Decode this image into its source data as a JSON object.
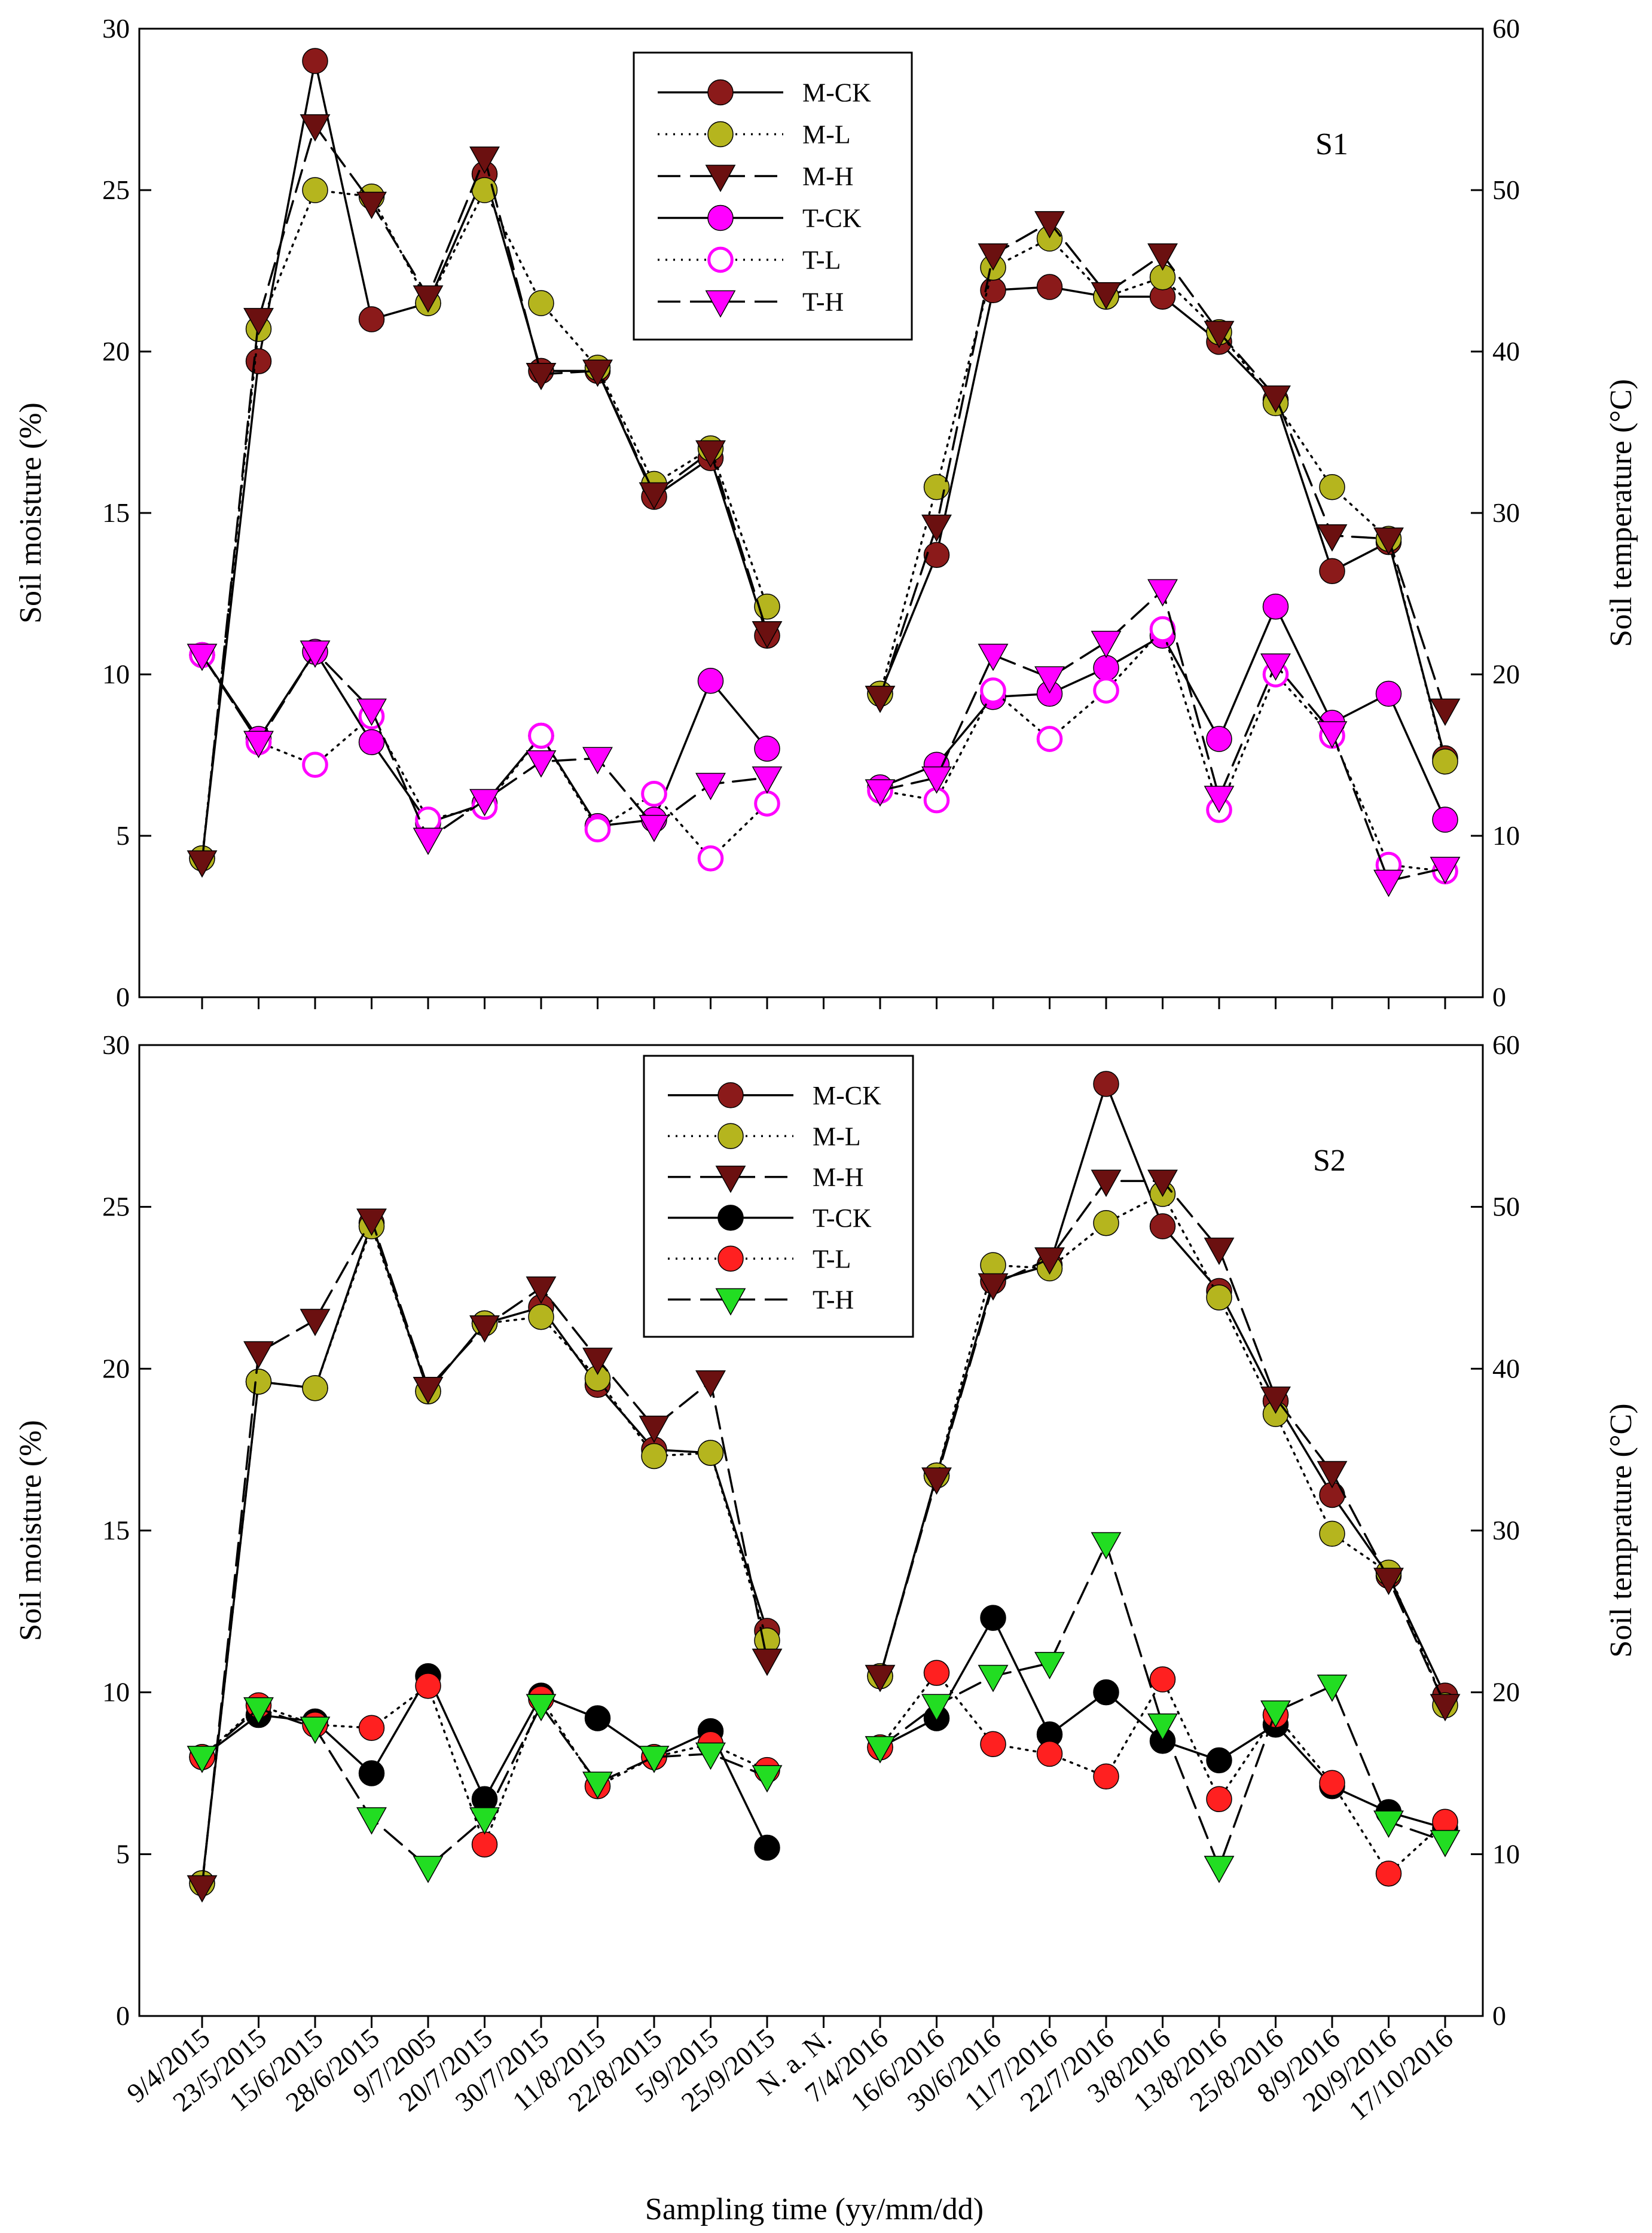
{
  "chart_data": {
    "type": "line",
    "x_categories": [
      "9/4/2015",
      "23/5/2015",
      "15/6/2015",
      "28/6/2015",
      "9/7/2005",
      "20/7/2015",
      "30/7/2015",
      "11/8/2015",
      "22/8/2015",
      "5/9/2015",
      "25/9/2015",
      "N. a. N.",
      "7/4/2016",
      "16/6/2016",
      "30/6/2016",
      "11/7/2016",
      "22/7/2016",
      "3/8/2016",
      "13/8/2016",
      "25/8/2016",
      "8/9/2016",
      "20/9/2016",
      "17/10/2016"
    ],
    "xlabel": "Sampling  time (yy/mm/dd)",
    "panels": [
      {
        "id": "S1",
        "label": "S1",
        "ylabel_left": "Soil moisture (%)",
        "ylabel_right": "Soil temperature (°C)",
        "ylim_left": [
          0,
          30
        ],
        "ylim_right": [
          0,
          60
        ],
        "yticks_left": [
          "0",
          "5",
          "10",
          "15",
          "20",
          "25",
          "30"
        ],
        "yticks_right": [
          "0",
          "10",
          "20",
          "30",
          "40",
          "50",
          "60"
        ],
        "series": [
          {
            "name": "M-CK",
            "style": "solid",
            "marker": "circle",
            "color": "#8b1a1a",
            "values": [
              4.3,
              19.7,
              29.0,
              21.0,
              21.5,
              25.5,
              19.4,
              19.4,
              15.5,
              16.7,
              11.2,
              null,
              9.4,
              13.7,
              21.9,
              22.0,
              21.7,
              21.7,
              20.3,
              18.5,
              13.2,
              14.1,
              7.4
            ]
          },
          {
            "name": "M-L",
            "style": "dotted",
            "marker": "circle",
            "color": "#b5b51e",
            "values": [
              4.3,
              20.7,
              25.0,
              24.8,
              21.5,
              25.0,
              21.5,
              19.5,
              15.9,
              17.0,
              12.1,
              null,
              9.4,
              15.8,
              22.6,
              23.5,
              21.7,
              22.3,
              20.6,
              18.4,
              15.8,
              14.2,
              7.3
            ]
          },
          {
            "name": "M-H",
            "style": "dashed",
            "marker": "triangle",
            "color": "#6b1010",
            "values": [
              4.2,
              21.0,
              27.0,
              24.6,
              21.7,
              26.0,
              19.3,
              19.4,
              15.6,
              16.9,
              11.3,
              null,
              9.3,
              14.6,
              23.0,
              24.0,
              21.8,
              23.0,
              20.6,
              18.6,
              14.3,
              14.2,
              8.9
            ]
          },
          {
            "name": "T-CK",
            "style": "solid",
            "marker": "circle",
            "color": "#ff00ff",
            "values": [
              10.6,
              8.0,
              10.7,
              7.9,
              5.4,
              6.0,
              8.1,
              5.3,
              5.5,
              9.8,
              7.7,
              null,
              6.5,
              7.2,
              9.3,
              9.4,
              10.2,
              11.2,
              8.0,
              12.1,
              8.5,
              9.4,
              5.5
            ]
          },
          {
            "name": "T-L",
            "style": "dotted",
            "marker": "circle-open",
            "color": "#ff00ff",
            "values": [
              10.6,
              7.9,
              7.2,
              8.7,
              5.5,
              5.9,
              8.1,
              5.2,
              6.3,
              4.3,
              6.0,
              null,
              6.4,
              6.1,
              9.5,
              8.0,
              9.5,
              11.4,
              5.8,
              10.0,
              8.1,
              4.1,
              3.9
            ]
          },
          {
            "name": "T-H",
            "style": "dashed",
            "marker": "triangle",
            "color": "#ff00ff",
            "values": [
              10.6,
              7.9,
              10.7,
              8.9,
              4.9,
              6.1,
              7.3,
              7.4,
              5.3,
              6.6,
              6.8,
              null,
              6.4,
              6.8,
              10.6,
              9.9,
              11.0,
              12.6,
              6.2,
              10.3,
              8.2,
              3.6,
              4.0
            ]
          }
        ]
      },
      {
        "id": "S2",
        "label": "S2",
        "ylabel_left": "Soil moisture (%)",
        "ylabel_right": "Soil temprature (°C)",
        "ylim_left": [
          0,
          30
        ],
        "ylim_right": [
          0,
          60
        ],
        "yticks_left": [
          "0",
          "5",
          "10",
          "15",
          "20",
          "25",
          "30"
        ],
        "yticks_right": [
          "0",
          "10",
          "20",
          "30",
          "40",
          "50",
          "60"
        ],
        "series": [
          {
            "name": "M-CK",
            "style": "solid",
            "marker": "circle",
            "color": "#8b1a1a",
            "values": [
              4.1,
              19.6,
              19.4,
              24.5,
              19.3,
              21.4,
              21.9,
              19.5,
              17.5,
              17.4,
              11.9,
              null,
              10.5,
              16.7,
              22.7,
              23.2,
              28.8,
              24.4,
              22.4,
              19.0,
              16.1,
              13.6,
              9.9
            ]
          },
          {
            "name": "M-L",
            "style": "dotted",
            "marker": "circle",
            "color": "#b5b51e",
            "values": [
              4.1,
              19.6,
              19.4,
              24.4,
              19.3,
              21.4,
              21.6,
              19.7,
              17.3,
              17.4,
              11.6,
              null,
              10.5,
              16.7,
              23.2,
              23.1,
              24.5,
              25.4,
              22.2,
              18.6,
              14.9,
              13.7,
              9.6
            ]
          },
          {
            "name": "M-H",
            "style": "dashed",
            "marker": "triangle",
            "color": "#6b1010",
            "values": [
              4.0,
              20.5,
              21.5,
              24.6,
              19.4,
              21.3,
              22.5,
              20.3,
              18.2,
              19.6,
              11.0,
              null,
              10.5,
              16.6,
              22.6,
              23.4,
              25.8,
              25.8,
              23.7,
              19.1,
              16.8,
              13.5,
              9.6
            ]
          },
          {
            "name": "T-CK",
            "style": "solid",
            "marker": "circle",
            "color": "#000000",
            "values": [
              8.0,
              9.3,
              9.1,
              7.5,
              10.5,
              6.7,
              9.9,
              9.2,
              8.0,
              8.8,
              5.2,
              null,
              8.3,
              9.2,
              12.3,
              8.7,
              10.0,
              8.5,
              7.9,
              9.0,
              7.1,
              6.3,
              5.8
            ]
          },
          {
            "name": "T-L",
            "style": "dotted",
            "marker": "circle",
            "color": "#ff2020",
            "values": [
              8.0,
              9.6,
              9.0,
              8.9,
              10.2,
              5.3,
              9.8,
              7.1,
              8.0,
              8.4,
              7.6,
              null,
              8.3,
              10.6,
              8.4,
              8.1,
              7.4,
              10.4,
              6.7,
              9.3,
              7.2,
              4.4,
              6.0
            ]
          },
          {
            "name": "T-H",
            "style": "dashed",
            "marker": "triangle",
            "color": "#22dd22",
            "values": [
              8.0,
              9.5,
              8.9,
              6.1,
              4.6,
              6.1,
              9.6,
              7.2,
              8.0,
              8.1,
              7.4,
              null,
              8.3,
              9.6,
              10.5,
              10.9,
              14.6,
              9.0,
              4.6,
              9.4,
              10.2,
              6.0,
              5.4
            ]
          }
        ]
      }
    ]
  }
}
